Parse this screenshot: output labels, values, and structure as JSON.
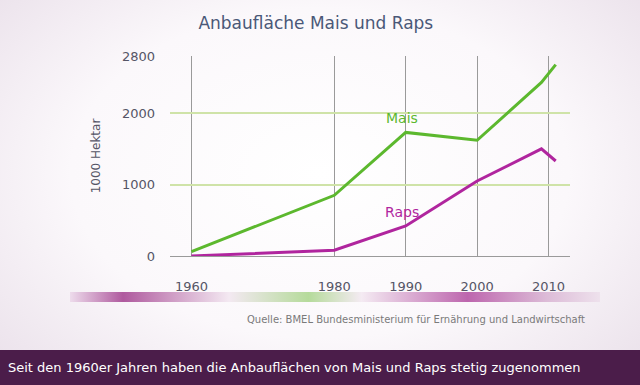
{
  "chart_data": {
    "type": "line",
    "title": "Anbaufläche Mais und Raps",
    "y_label": "1000 Hektar",
    "source": "Quelle: BMEL Bundesministerium für Ernährung und Landwirtschaft",
    "caption": "Seit den 1960er Jahren haben die Anbauflächen von Mais und Raps stetig zugenommen",
    "x": [
      1960,
      1980,
      1990,
      2000,
      2009,
      2011
    ],
    "series": [
      {
        "name": "Mais",
        "color": "#5cb82e",
        "values": [
          60,
          850,
          1730,
          1620,
          2430,
          2680
        ]
      },
      {
        "name": "Raps",
        "color": "#b0259e",
        "values": [
          0,
          80,
          420,
          1050,
          1500,
          1330
        ]
      }
    ],
    "xlim": [
      1957,
      2013
    ],
    "xticks": [
      1960,
      1980,
      1990,
      2000,
      2010
    ],
    "ylim": [
      0,
      2800
    ],
    "yticks": [
      0,
      1000,
      2000,
      2800
    ],
    "grid": true
  }
}
